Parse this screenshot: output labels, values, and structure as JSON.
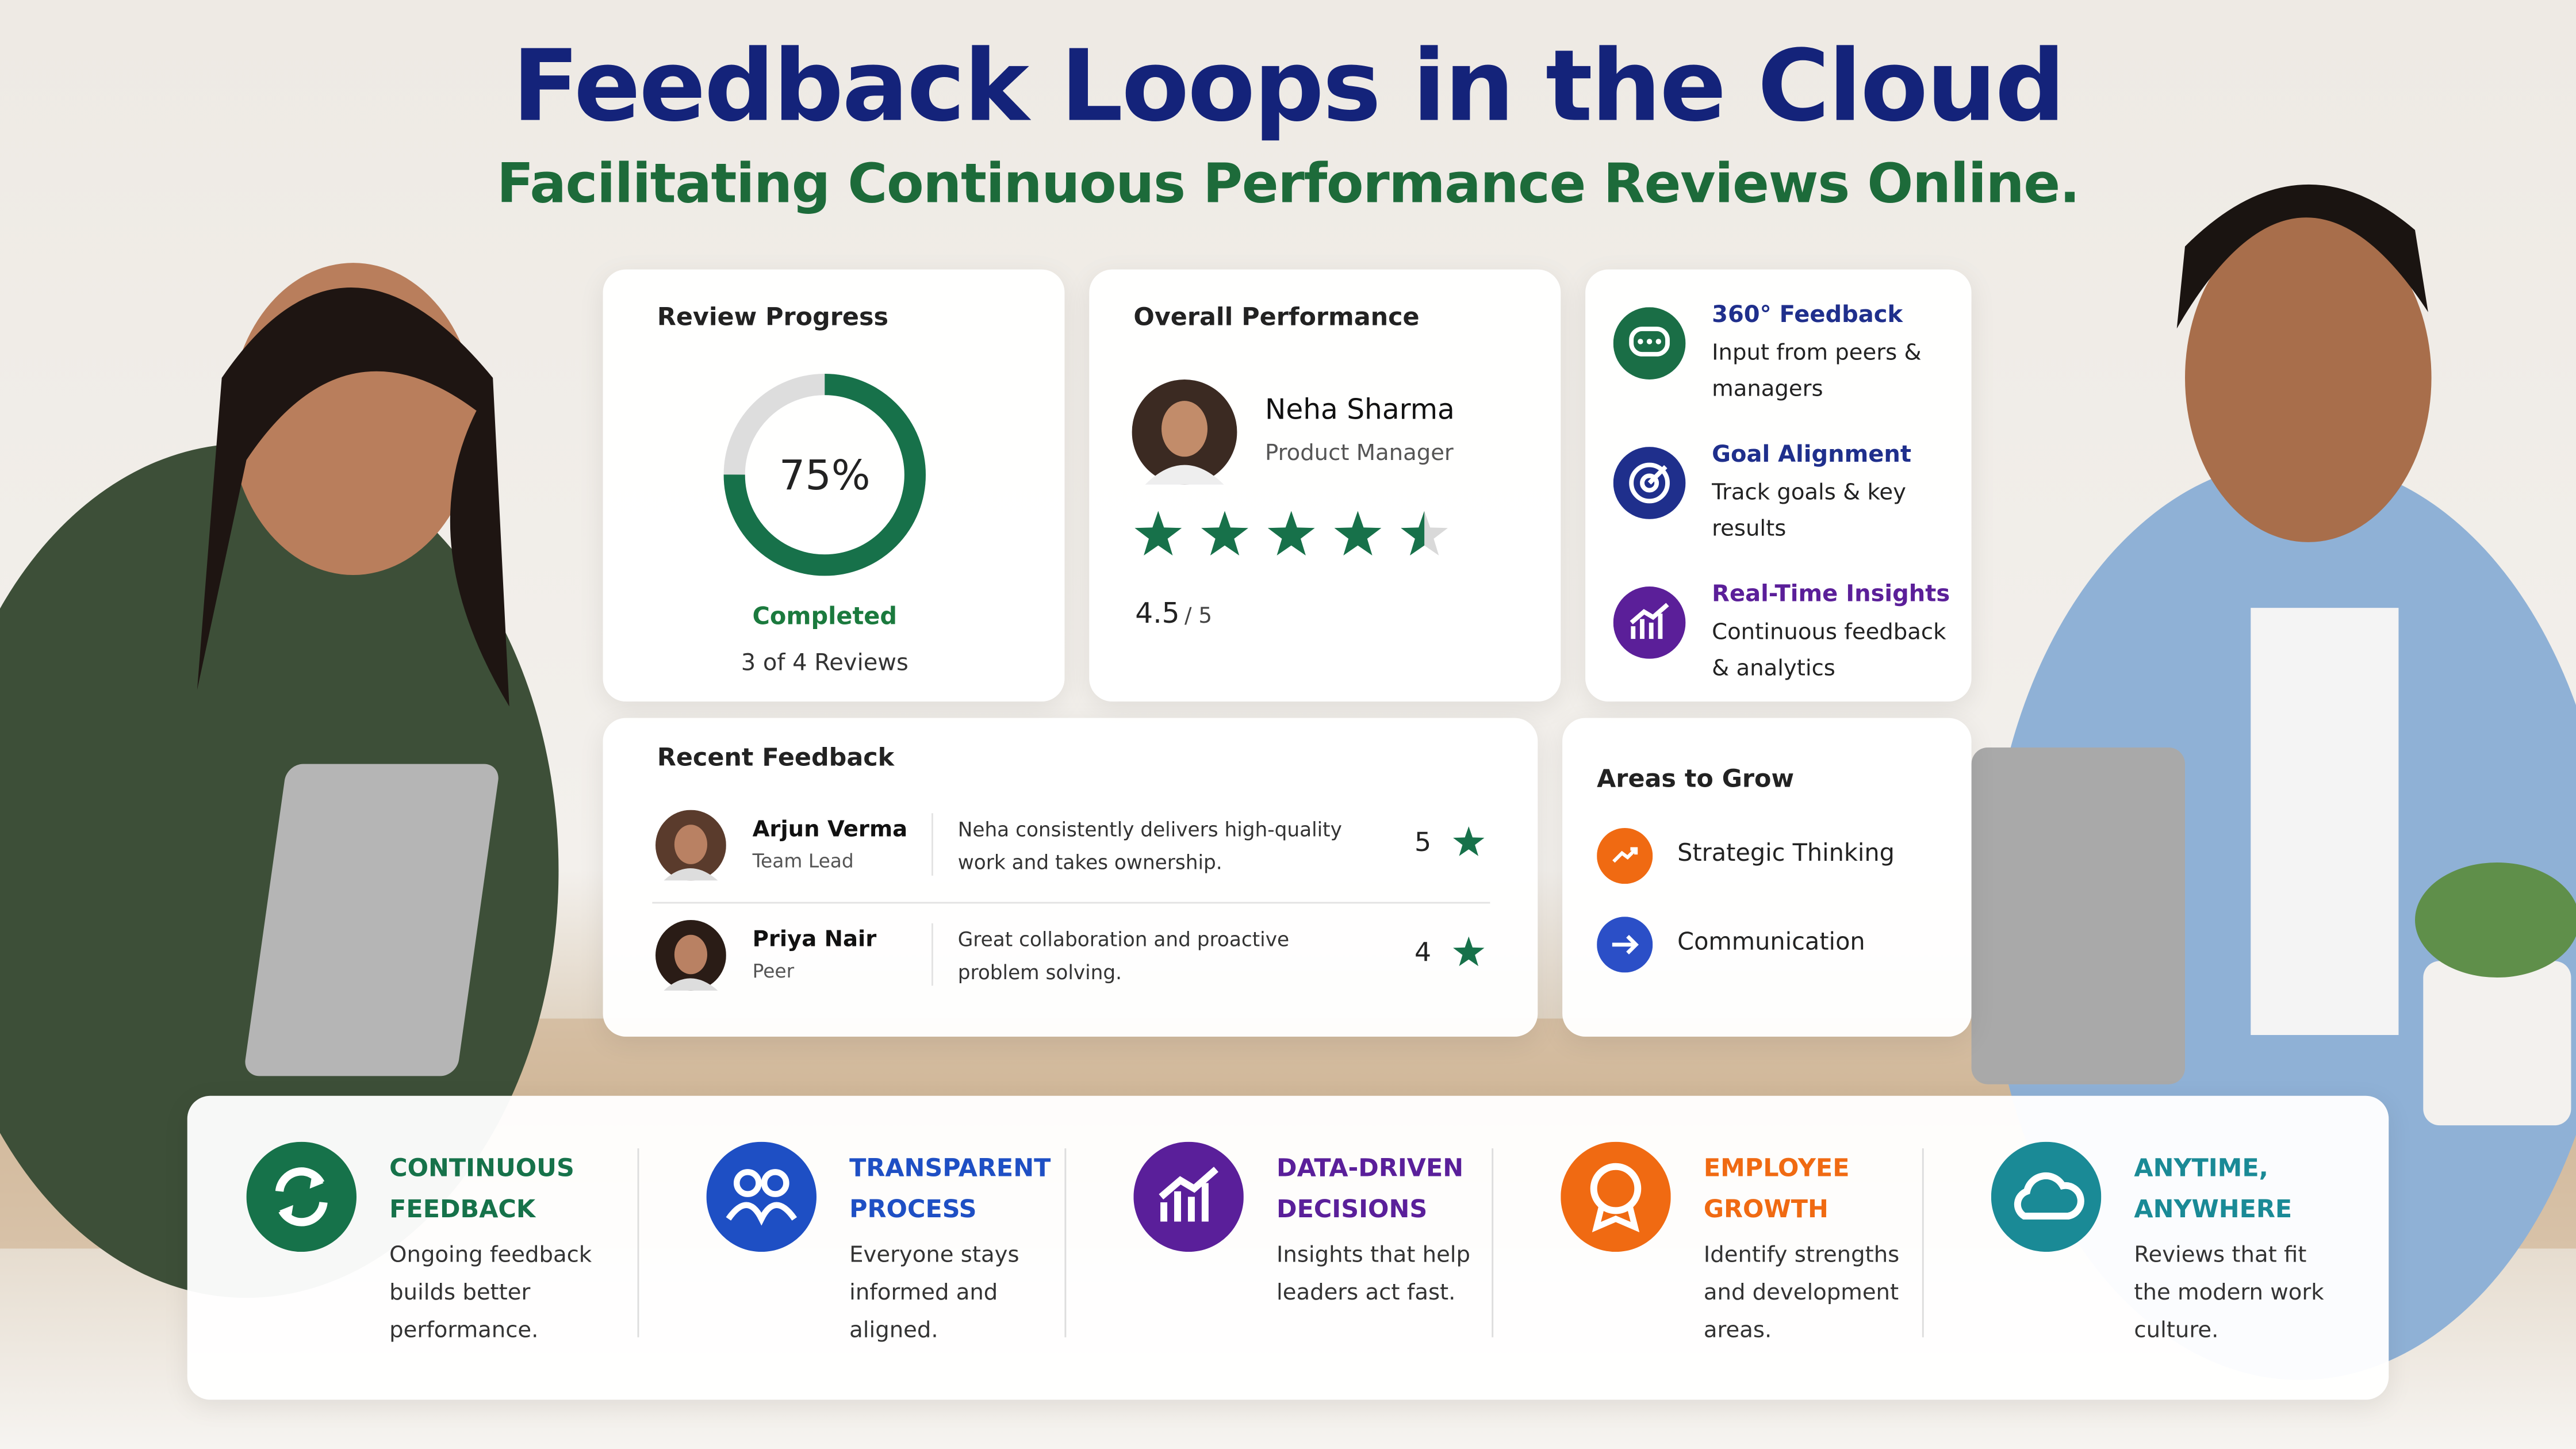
{
  "header": {
    "title": "Feedback Loops in the Cloud",
    "subtitle": "Facilitating Continuous Performance Reviews Online."
  },
  "review_progress": {
    "title": "Review Progress",
    "percent": 75,
    "percent_label": "75%",
    "status": "Completed",
    "detail": "3 of 4 Reviews"
  },
  "overall_performance": {
    "title": "Overall Performance",
    "name": "Neha Sharma",
    "role": "Product Manager",
    "rating": 4.5,
    "rating_max": 5,
    "rating_max_label": "/ 5"
  },
  "features": [
    {
      "title": "360° Feedback",
      "text": "Input from peers & managers"
    },
    {
      "title": "Goal Alignment",
      "text": "Track goals & key results"
    },
    {
      "title": "Real-Time Insights",
      "text": "Continuous feedback & analytics"
    }
  ],
  "recent_feedback": {
    "title": "Recent Feedback",
    "items": [
      {
        "name": "Arjun Verma",
        "role": "Team Lead",
        "comment": "Neha consistently delivers high-quality work and takes ownership.",
        "score": 5
      },
      {
        "name": "Priya Nair",
        "role": "Peer",
        "comment": "Great collaboration and proactive problem solving.",
        "score": 4
      }
    ]
  },
  "areas_to_grow": {
    "title": "Areas to Grow",
    "items": [
      "Strategic Thinking",
      "Communication"
    ]
  },
  "benefits": [
    {
      "title": "CONTINUOUS FEEDBACK",
      "text": "Ongoing feedback builds better performance."
    },
    {
      "title": "TRANSPARENT PROCESS",
      "text": "Everyone stays informed and aligned."
    },
    {
      "title": "DATA-DRIVEN DECISIONS",
      "text": "Insights that help leaders act fast."
    },
    {
      "title": "EMPLOYEE GROWTH",
      "text": "Identify strengths and development areas."
    },
    {
      "title": "ANYTIME, ANYWHERE",
      "text": "Reviews that fit the modern work culture."
    }
  ]
}
